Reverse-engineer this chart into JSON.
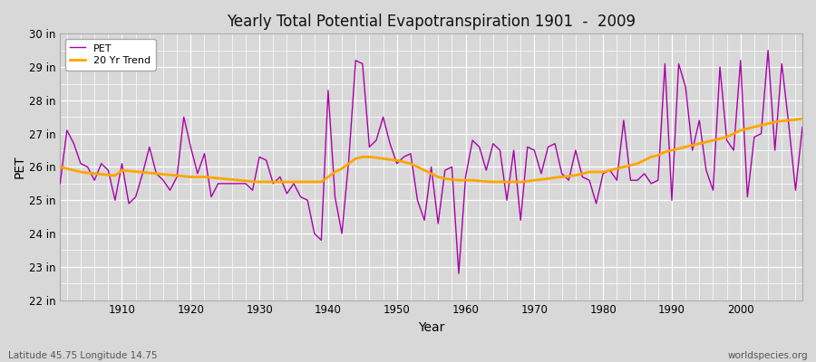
{
  "title": "Yearly Total Potential Evapotranspiration 1901  -  2009",
  "xlabel": "Year",
  "ylabel": "PET",
  "subtitle_left": "Latitude 45.75 Longitude 14.75",
  "subtitle_right": "worldspecies.org",
  "pet_color": "#AA00AA",
  "trend_color": "#FFA500",
  "fig_bg_color": "#D8D8D8",
  "plot_bg_color": "#D8D8D8",
  "ylim": [
    22,
    30
  ],
  "xlim": [
    1901,
    2009
  ],
  "ytick_labels": [
    "22 in",
    "23 in",
    "24 in",
    "25 in",
    "26 in",
    "27 in",
    "28 in",
    "29 in",
    "30 in"
  ],
  "ytick_values": [
    22,
    23,
    24,
    25,
    26,
    27,
    28,
    29,
    30
  ],
  "xticks": [
    1910,
    1920,
    1930,
    1940,
    1950,
    1960,
    1970,
    1980,
    1990,
    2000
  ],
  "years": [
    1901,
    1902,
    1903,
    1904,
    1905,
    1906,
    1907,
    1908,
    1909,
    1910,
    1911,
    1912,
    1913,
    1914,
    1915,
    1916,
    1917,
    1918,
    1919,
    1920,
    1921,
    1922,
    1923,
    1924,
    1925,
    1926,
    1927,
    1928,
    1929,
    1930,
    1931,
    1932,
    1933,
    1934,
    1935,
    1936,
    1937,
    1938,
    1939,
    1940,
    1941,
    1942,
    1943,
    1944,
    1945,
    1946,
    1947,
    1948,
    1949,
    1950,
    1951,
    1952,
    1953,
    1954,
    1955,
    1956,
    1957,
    1958,
    1959,
    1960,
    1961,
    1962,
    1963,
    1964,
    1965,
    1966,
    1967,
    1968,
    1969,
    1970,
    1971,
    1972,
    1973,
    1974,
    1975,
    1976,
    1977,
    1978,
    1979,
    1980,
    1981,
    1982,
    1983,
    1984,
    1985,
    1986,
    1987,
    1988,
    1989,
    1990,
    1991,
    1992,
    1993,
    1994,
    1995,
    1996,
    1997,
    1998,
    1999,
    2000,
    2001,
    2002,
    2003,
    2004,
    2005,
    2006,
    2007,
    2008,
    2009
  ],
  "pet": [
    25.5,
    27.1,
    26.7,
    26.1,
    26.0,
    25.6,
    26.1,
    25.9,
    25.0,
    26.1,
    24.9,
    25.1,
    25.8,
    26.6,
    25.8,
    25.6,
    25.3,
    25.7,
    27.5,
    26.6,
    25.8,
    26.4,
    25.1,
    25.5,
    25.5,
    25.5,
    25.5,
    25.5,
    25.3,
    26.3,
    26.2,
    25.5,
    25.7,
    25.2,
    25.5,
    25.1,
    25.0,
    24.0,
    23.8,
    28.3,
    25.1,
    24.0,
    26.2,
    29.2,
    29.1,
    26.6,
    26.8,
    27.5,
    26.7,
    26.1,
    26.3,
    26.4,
    25.0,
    24.4,
    26.0,
    24.3,
    25.9,
    26.0,
    22.8,
    25.7,
    26.8,
    26.6,
    25.9,
    26.7,
    26.5,
    25.0,
    26.5,
    24.4,
    26.6,
    26.5,
    25.8,
    26.6,
    26.7,
    25.8,
    25.6,
    26.5,
    25.7,
    25.6,
    24.9,
    25.8,
    25.9,
    25.6,
    27.4,
    25.6,
    25.6,
    25.8,
    25.5,
    25.6,
    29.1,
    25.0,
    29.1,
    28.4,
    26.5,
    27.4,
    25.9,
    25.3,
    29.0,
    26.8,
    26.5,
    29.2,
    25.1,
    26.9,
    27.0,
    29.5,
    26.5,
    29.1,
    27.3,
    25.3,
    27.2
  ],
  "trend": [
    26.0,
    25.95,
    25.9,
    25.85,
    25.82,
    25.8,
    25.78,
    25.76,
    25.74,
    25.9,
    25.88,
    25.86,
    25.84,
    25.82,
    25.8,
    25.78,
    25.76,
    25.74,
    25.72,
    25.7,
    25.7,
    25.7,
    25.68,
    25.66,
    25.64,
    25.62,
    25.6,
    25.58,
    25.56,
    25.55,
    25.55,
    25.55,
    25.55,
    25.55,
    25.55,
    25.55,
    25.55,
    25.55,
    25.55,
    25.7,
    25.85,
    25.95,
    26.1,
    26.25,
    26.3,
    26.3,
    26.28,
    26.25,
    26.22,
    26.2,
    26.15,
    26.1,
    26.0,
    25.9,
    25.8,
    25.7,
    25.65,
    25.62,
    25.6,
    25.6,
    25.6,
    25.58,
    25.56,
    25.55,
    25.55,
    25.55,
    25.55,
    25.55,
    25.57,
    25.6,
    25.62,
    25.65,
    25.68,
    25.7,
    25.72,
    25.75,
    25.8,
    25.85,
    25.85,
    25.85,
    25.9,
    25.95,
    26.0,
    26.05,
    26.1,
    26.2,
    26.3,
    26.35,
    26.45,
    26.5,
    26.55,
    26.6,
    26.65,
    26.7,
    26.75,
    26.8,
    26.85,
    26.9,
    27.0,
    27.1,
    27.15,
    27.2,
    27.25,
    27.3,
    27.35,
    27.38,
    27.4,
    27.42,
    27.45
  ]
}
